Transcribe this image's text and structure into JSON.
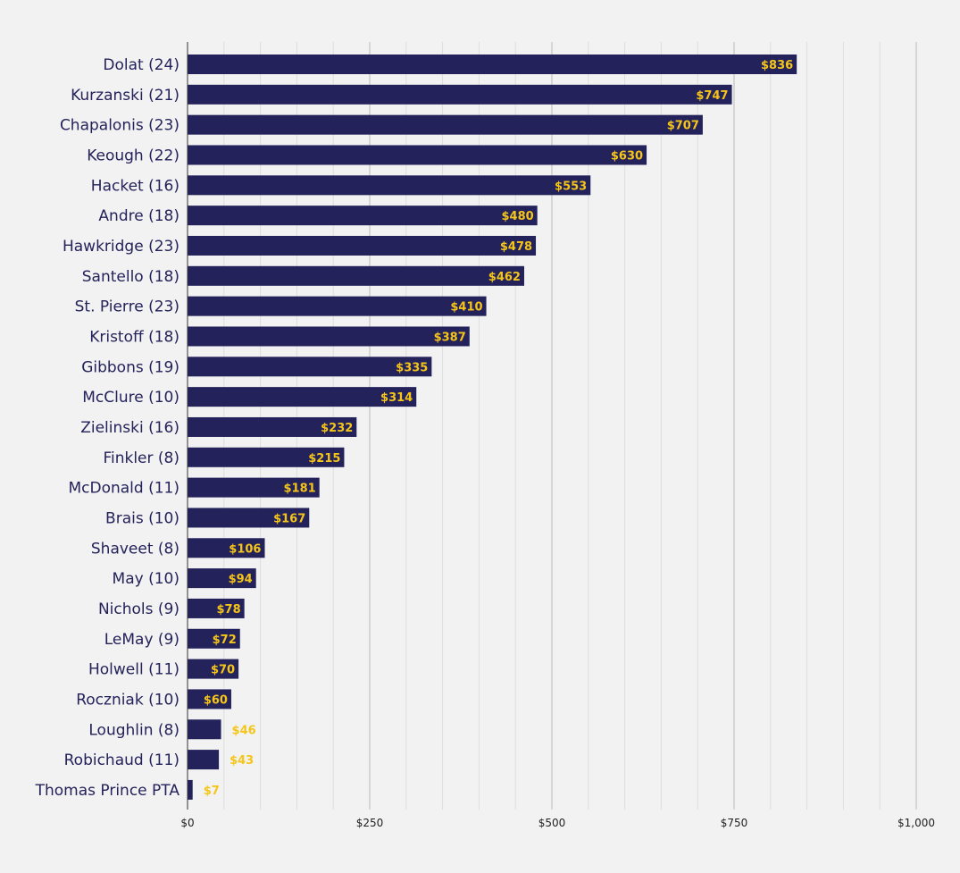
{
  "chart_data": {
    "type": "bar",
    "orientation": "horizontal",
    "title": "",
    "xlabel": "",
    "ylabel": "",
    "xlim": [
      0,
      1000
    ],
    "tick_values": [
      0,
      250,
      500,
      750,
      1000
    ],
    "tick_labels": [
      "$0",
      "$250",
      "$500",
      "$750",
      "$1,000"
    ],
    "grid": true,
    "legend": "none",
    "categories": [
      "Dolat (24)",
      "Kurzanski (21)",
      "Chapalonis (23)",
      "Keough (22)",
      "Hacket (16)",
      "Andre (18)",
      "Hawkridge (23)",
      "Santello (18)",
      "St. Pierre (23)",
      "Kristoff (18)",
      "Gibbons (19)",
      "McClure (10)",
      "Zielinski (16)",
      "Finkler (8)",
      "McDonald (11)",
      "Brais (10)",
      "Shaveet (8)",
      "May (10)",
      "Nichols (9)",
      "LeMay (9)",
      "Holwell (11)",
      "Roczniak (10)",
      "Loughlin (8)",
      "Robichaud (11)",
      "Thomas Prince PTA"
    ],
    "values": [
      836,
      747,
      707,
      630,
      553,
      480,
      478,
      462,
      410,
      387,
      335,
      314,
      232,
      215,
      181,
      167,
      106,
      94,
      78,
      72,
      70,
      60,
      46,
      43,
      7
    ],
    "value_labels": [
      "$836",
      "$747",
      "$707",
      "$630",
      "$553",
      "$480",
      "$478",
      "$462",
      "$410",
      "$387",
      "$335",
      "$314",
      "$232",
      "$215",
      "$181",
      "$167",
      "$106",
      "$94",
      "$78",
      "$72",
      "$70",
      "$60",
      "$46",
      "$43",
      "$7"
    ],
    "colors": {
      "bar": "#24225a",
      "value_label": "#f5c518",
      "category_label": "#24225a",
      "background": "#f2f2f2",
      "grid_major": "#bbbbbb",
      "grid_minor": "#dddddd"
    }
  }
}
